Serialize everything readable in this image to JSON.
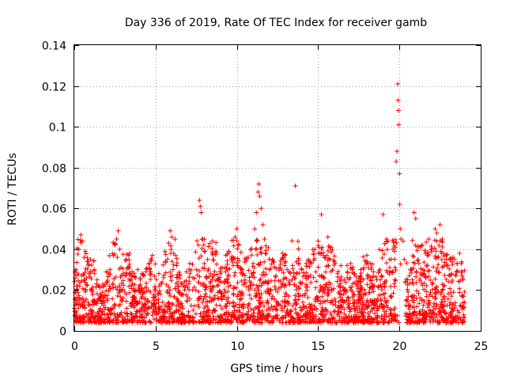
{
  "chart_data": {
    "type": "scatter",
    "title": "Day 336 of 2019, Rate Of TEC Index for receiver gamb",
    "xlabel": "GPS time / hours",
    "ylabel": "ROTI / TECUs",
    "xlim": [
      0,
      25
    ],
    "ylim": [
      0,
      0.14
    ],
    "xticks": [
      0,
      5,
      10,
      15,
      20,
      25
    ],
    "xtick_labels": [
      "0",
      "5",
      "10",
      "15",
      "20",
      "25"
    ],
    "yticks": [
      0,
      0.02,
      0.04,
      0.06,
      0.08,
      0.1,
      0.12,
      0.14
    ],
    "ytick_labels": [
      "0",
      "0.02",
      "0.04",
      "0.06",
      "0.08",
      "0.1",
      "0.12",
      "0.14"
    ],
    "grid": true,
    "marker": "+",
    "marker_color": "#ff0000",
    "series": [
      {
        "name": "ROTI",
        "points": [
          [
            0.0,
            0.011
          ],
          [
            0.1,
            0.03
          ],
          [
            0.2,
            0.022
          ],
          [
            0.3,
            0.016
          ],
          [
            0.4,
            0.047
          ],
          [
            0.5,
            0.044
          ],
          [
            0.6,
            0.036
          ],
          [
            0.7,
            0.02
          ],
          [
            0.8,
            0.034
          ],
          [
            0.9,
            0.028
          ],
          [
            1.0,
            0.035
          ],
          [
            1.1,
            0.019
          ],
          [
            1.2,
            0.013
          ],
          [
            1.4,
            0.025
          ],
          [
            1.6,
            0.018
          ],
          [
            1.8,
            0.022
          ],
          [
            2.0,
            0.024
          ],
          [
            2.2,
            0.03
          ],
          [
            2.4,
            0.037
          ],
          [
            2.5,
            0.042
          ],
          [
            2.6,
            0.045
          ],
          [
            2.7,
            0.049
          ],
          [
            2.8,
            0.04
          ],
          [
            3.0,
            0.028
          ],
          [
            3.2,
            0.035
          ],
          [
            3.3,
            0.031
          ],
          [
            3.4,
            0.038
          ],
          [
            3.5,
            0.025
          ],
          [
            3.7,
            0.027
          ],
          [
            3.9,
            0.03
          ],
          [
            4.0,
            0.022
          ],
          [
            4.2,
            0.018
          ],
          [
            4.4,
            0.029
          ],
          [
            4.6,
            0.033
          ],
          [
            4.8,
            0.037
          ],
          [
            5.0,
            0.02
          ],
          [
            5.2,
            0.028
          ],
          [
            5.4,
            0.024
          ],
          [
            5.6,
            0.034
          ],
          [
            5.8,
            0.043
          ],
          [
            5.9,
            0.049
          ],
          [
            6.0,
            0.046
          ],
          [
            6.1,
            0.038
          ],
          [
            6.3,
            0.032
          ],
          [
            6.5,
            0.027
          ],
          [
            6.7,
            0.022
          ],
          [
            6.9,
            0.029
          ],
          [
            7.1,
            0.033
          ],
          [
            7.3,
            0.026
          ],
          [
            7.5,
            0.03
          ],
          [
            7.7,
            0.064
          ],
          [
            7.75,
            0.061
          ],
          [
            7.8,
            0.058
          ],
          [
            7.9,
            0.045
          ],
          [
            8.0,
            0.033
          ],
          [
            8.2,
            0.035
          ],
          [
            8.4,
            0.028
          ],
          [
            8.5,
            0.044
          ],
          [
            8.7,
            0.039
          ],
          [
            8.9,
            0.025
          ],
          [
            9.1,
            0.031
          ],
          [
            9.3,
            0.029
          ],
          [
            9.5,
            0.039
          ],
          [
            9.7,
            0.035
          ],
          [
            9.9,
            0.046
          ],
          [
            10.0,
            0.05
          ],
          [
            10.1,
            0.042
          ],
          [
            10.3,
            0.03
          ],
          [
            10.5,
            0.025
          ],
          [
            10.7,
            0.036
          ],
          [
            10.9,
            0.028
          ],
          [
            11.0,
            0.033
          ],
          [
            11.1,
            0.05
          ],
          [
            11.2,
            0.058
          ],
          [
            11.3,
            0.068
          ],
          [
            11.35,
            0.072
          ],
          [
            11.4,
            0.066
          ],
          [
            11.5,
            0.06
          ],
          [
            11.6,
            0.052
          ],
          [
            11.7,
            0.045
          ],
          [
            11.8,
            0.038
          ],
          [
            12.0,
            0.03
          ],
          [
            12.2,
            0.035
          ],
          [
            12.4,
            0.027
          ],
          [
            12.6,
            0.031
          ],
          [
            12.8,
            0.038
          ],
          [
            13.0,
            0.034
          ],
          [
            13.2,
            0.029
          ],
          [
            13.4,
            0.025
          ],
          [
            13.6,
            0.071
          ],
          [
            13.8,
            0.033
          ],
          [
            14.0,
            0.03
          ],
          [
            14.2,
            0.027
          ],
          [
            14.4,
            0.035
          ],
          [
            14.6,
            0.033
          ],
          [
            14.8,
            0.04
          ],
          [
            15.0,
            0.044
          ],
          [
            15.1,
            0.038
          ],
          [
            15.2,
            0.057
          ],
          [
            15.4,
            0.036
          ],
          [
            15.6,
            0.046
          ],
          [
            15.8,
            0.041
          ],
          [
            16.0,
            0.034
          ],
          [
            16.2,
            0.028
          ],
          [
            16.4,
            0.032
          ],
          [
            16.6,
            0.025
          ],
          [
            16.8,
            0.029
          ],
          [
            17.0,
            0.033
          ],
          [
            17.2,
            0.028
          ],
          [
            17.4,
            0.022
          ],
          [
            17.6,
            0.027
          ],
          [
            17.8,
            0.031
          ],
          [
            18.0,
            0.037
          ],
          [
            18.2,
            0.033
          ],
          [
            18.4,
            0.029
          ],
          [
            18.6,
            0.025
          ],
          [
            18.8,
            0.03
          ],
          [
            19.0,
            0.057
          ],
          [
            19.2,
            0.045
          ],
          [
            19.4,
            0.035
          ],
          [
            19.6,
            0.04
          ],
          [
            19.8,
            0.083
          ],
          [
            19.85,
            0.088
          ],
          [
            19.9,
            0.121
          ],
          [
            19.92,
            0.113
          ],
          [
            19.94,
            0.108
          ],
          [
            19.96,
            0.101
          ],
          [
            20.0,
            0.077
          ],
          [
            20.02,
            0.062
          ],
          [
            20.05,
            0.05
          ],
          [
            20.1,
            0.045
          ],
          [
            20.3,
            0.035
          ],
          [
            20.5,
            0.025
          ],
          [
            20.7,
            0.03
          ],
          [
            20.8,
            0.025
          ],
          [
            20.9,
            0.058
          ],
          [
            21.0,
            0.055
          ],
          [
            21.2,
            0.033
          ],
          [
            21.4,
            0.042
          ],
          [
            21.6,
            0.038
          ],
          [
            21.8,
            0.045
          ],
          [
            22.0,
            0.04
          ],
          [
            22.2,
            0.05
          ],
          [
            22.3,
            0.048
          ],
          [
            22.5,
            0.052
          ],
          [
            22.7,
            0.038
          ],
          [
            22.9,
            0.032
          ],
          [
            23.1,
            0.027
          ],
          [
            23.3,
            0.036
          ],
          [
            23.5,
            0.029
          ],
          [
            23.7,
            0.038
          ],
          [
            23.8,
            0.033
          ],
          [
            23.9,
            0.025
          ],
          [
            24.0,
            0.014
          ]
        ]
      }
    ]
  }
}
